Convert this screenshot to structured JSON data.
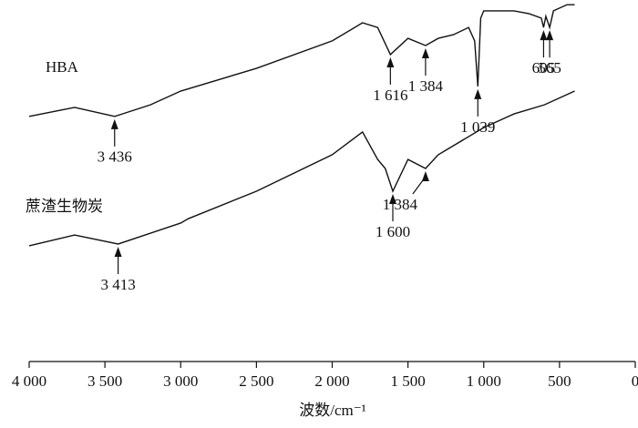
{
  "chart_data": {
    "type": "line",
    "xlabel": "波数/cm⁻¹",
    "xlim": [
      4000,
      0
    ],
    "xticks": [
      {
        "value": 4000,
        "label": "4 000"
      },
      {
        "value": 3500,
        "label": "3 500"
      },
      {
        "value": 3000,
        "label": "3 000"
      },
      {
        "value": 2500,
        "label": "2 500"
      },
      {
        "value": 2000,
        "label": "2 000"
      },
      {
        "value": 1500,
        "label": "1 500"
      },
      {
        "value": 1000,
        "label": "1 000"
      },
      500,
      0
    ],
    "ylim": [
      0,
      100
    ],
    "series": [
      {
        "name": "HBA",
        "color": "#111111",
        "x": [
          4000,
          3700,
          3436,
          3200,
          3000,
          2500,
          2000,
          1800,
          1700,
          1616,
          1500,
          1384,
          1300,
          1200,
          1100,
          1060,
          1039,
          1020,
          1000,
          800,
          700,
          620,
          605,
          590,
          565,
          540,
          450,
          400
        ],
        "values": [
          67.8,
          70.3,
          67.8,
          71.0,
          74.8,
          81.1,
          88.7,
          93.7,
          92.4,
          84.9,
          89.4,
          87.4,
          89.4,
          90.4,
          92.4,
          88.7,
          76.1,
          95.0,
          97.0,
          97.0,
          96.2,
          95.0,
          92.4,
          95.5,
          92.4,
          97.0,
          98.7,
          98.7
        ],
        "annotations": [
          {
            "x": 3436,
            "label": "3 436"
          },
          {
            "x": 1616,
            "label": "1 616"
          },
          {
            "x": 1384,
            "label": "1 384"
          },
          {
            "x": 1039,
            "label": "1 039"
          },
          {
            "x": 605,
            "label": "605"
          },
          {
            "x": 565,
            "label": "565"
          }
        ]
      },
      {
        "name": "蔗渣生物炭",
        "color": "#111111",
        "x": [
          4000,
          3700,
          3413,
          3000,
          2950,
          2500,
          2000,
          1800,
          1700,
          1650,
          1600,
          1500,
          1384,
          1300,
          1100,
          1000,
          800,
          600,
          400
        ],
        "values": [
          32.0,
          35.0,
          32.5,
          38.3,
          39.5,
          47.1,
          57.2,
          63.5,
          55.9,
          53.4,
          47.1,
          55.9,
          53.4,
          57.2,
          62.2,
          64.7,
          68.5,
          71.0,
          74.8
        ],
        "annotations": [
          {
            "x": 3413,
            "label": "3 413"
          },
          {
            "x": 1600,
            "label": "1 600"
          },
          {
            "x": 1384,
            "label": "1 384"
          }
        ]
      }
    ]
  }
}
